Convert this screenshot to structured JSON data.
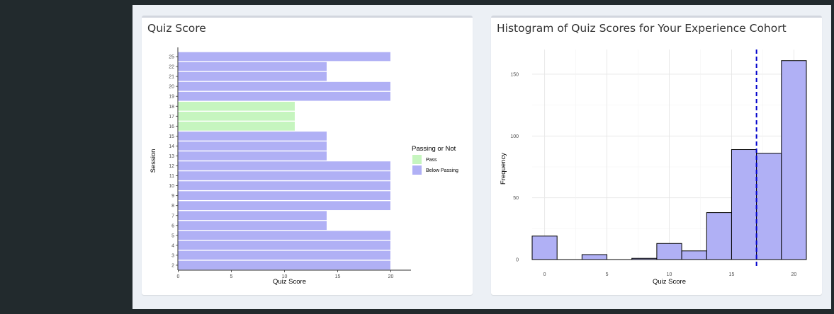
{
  "colors": {
    "pass": "#c6f5bf",
    "below": "#b0b0f5",
    "hist_fill": "#b0b0f5",
    "hist_stroke": "#000000",
    "mean_line": "#0000cc"
  },
  "panels": {
    "left_title": "Quiz Score",
    "right_title": "Histogram of Quiz Scores for Your Experience Cohort"
  },
  "chart_data": [
    {
      "type": "bar",
      "orientation": "horizontal",
      "title": "Quiz Score",
      "xlabel": "Quiz Score",
      "ylabel": "Session",
      "xlim": [
        0,
        21
      ],
      "x_ticks": [
        0,
        5,
        10,
        15,
        20
      ],
      "categories": [
        "2",
        "3",
        "4",
        "5",
        "6",
        "7",
        "8",
        "9",
        "10",
        "11",
        "12",
        "13",
        "14",
        "15",
        "16",
        "17",
        "18",
        "19",
        "20",
        "21",
        "22",
        "25"
      ],
      "values": [
        20,
        20,
        20,
        20,
        14,
        14,
        20,
        20,
        20,
        20,
        20,
        14,
        14,
        14,
        11,
        11,
        11,
        20,
        20,
        14,
        14,
        20
      ],
      "status": [
        "Below Passing",
        "Below Passing",
        "Below Passing",
        "Below Passing",
        "Below Passing",
        "Below Passing",
        "Below Passing",
        "Below Passing",
        "Below Passing",
        "Below Passing",
        "Below Passing",
        "Below Passing",
        "Below Passing",
        "Below Passing",
        "Pass",
        "Pass",
        "Pass",
        "Below Passing",
        "Below Passing",
        "Below Passing",
        "Below Passing",
        "Below Passing"
      ],
      "legend": {
        "title": "Passing or Not",
        "position": "right",
        "entries": [
          "Pass",
          "Below Passing"
        ]
      }
    },
    {
      "type": "bar",
      "subtype": "histogram",
      "title": "Histogram of Quiz Scores for Your Experience Cohort",
      "xlabel": "Quiz Score",
      "ylabel": "Frequency",
      "xlim": [
        -1,
        21
      ],
      "ylim": [
        0,
        170
      ],
      "x_ticks": [
        0,
        5,
        10,
        15,
        20
      ],
      "y_ticks": [
        0,
        50,
        100,
        150
      ],
      "bins": [
        [
          -1,
          1
        ],
        [
          1,
          3
        ],
        [
          3,
          5
        ],
        [
          5,
          7
        ],
        [
          7,
          9
        ],
        [
          9,
          11
        ],
        [
          11,
          13
        ],
        [
          13,
          15
        ],
        [
          15,
          17
        ],
        [
          17,
          19
        ],
        [
          19,
          21
        ]
      ],
      "values": [
        19,
        0,
        4,
        0,
        1,
        13,
        7,
        38,
        89,
        86,
        161
      ],
      "mean_line_x": 17,
      "grid": true
    }
  ]
}
